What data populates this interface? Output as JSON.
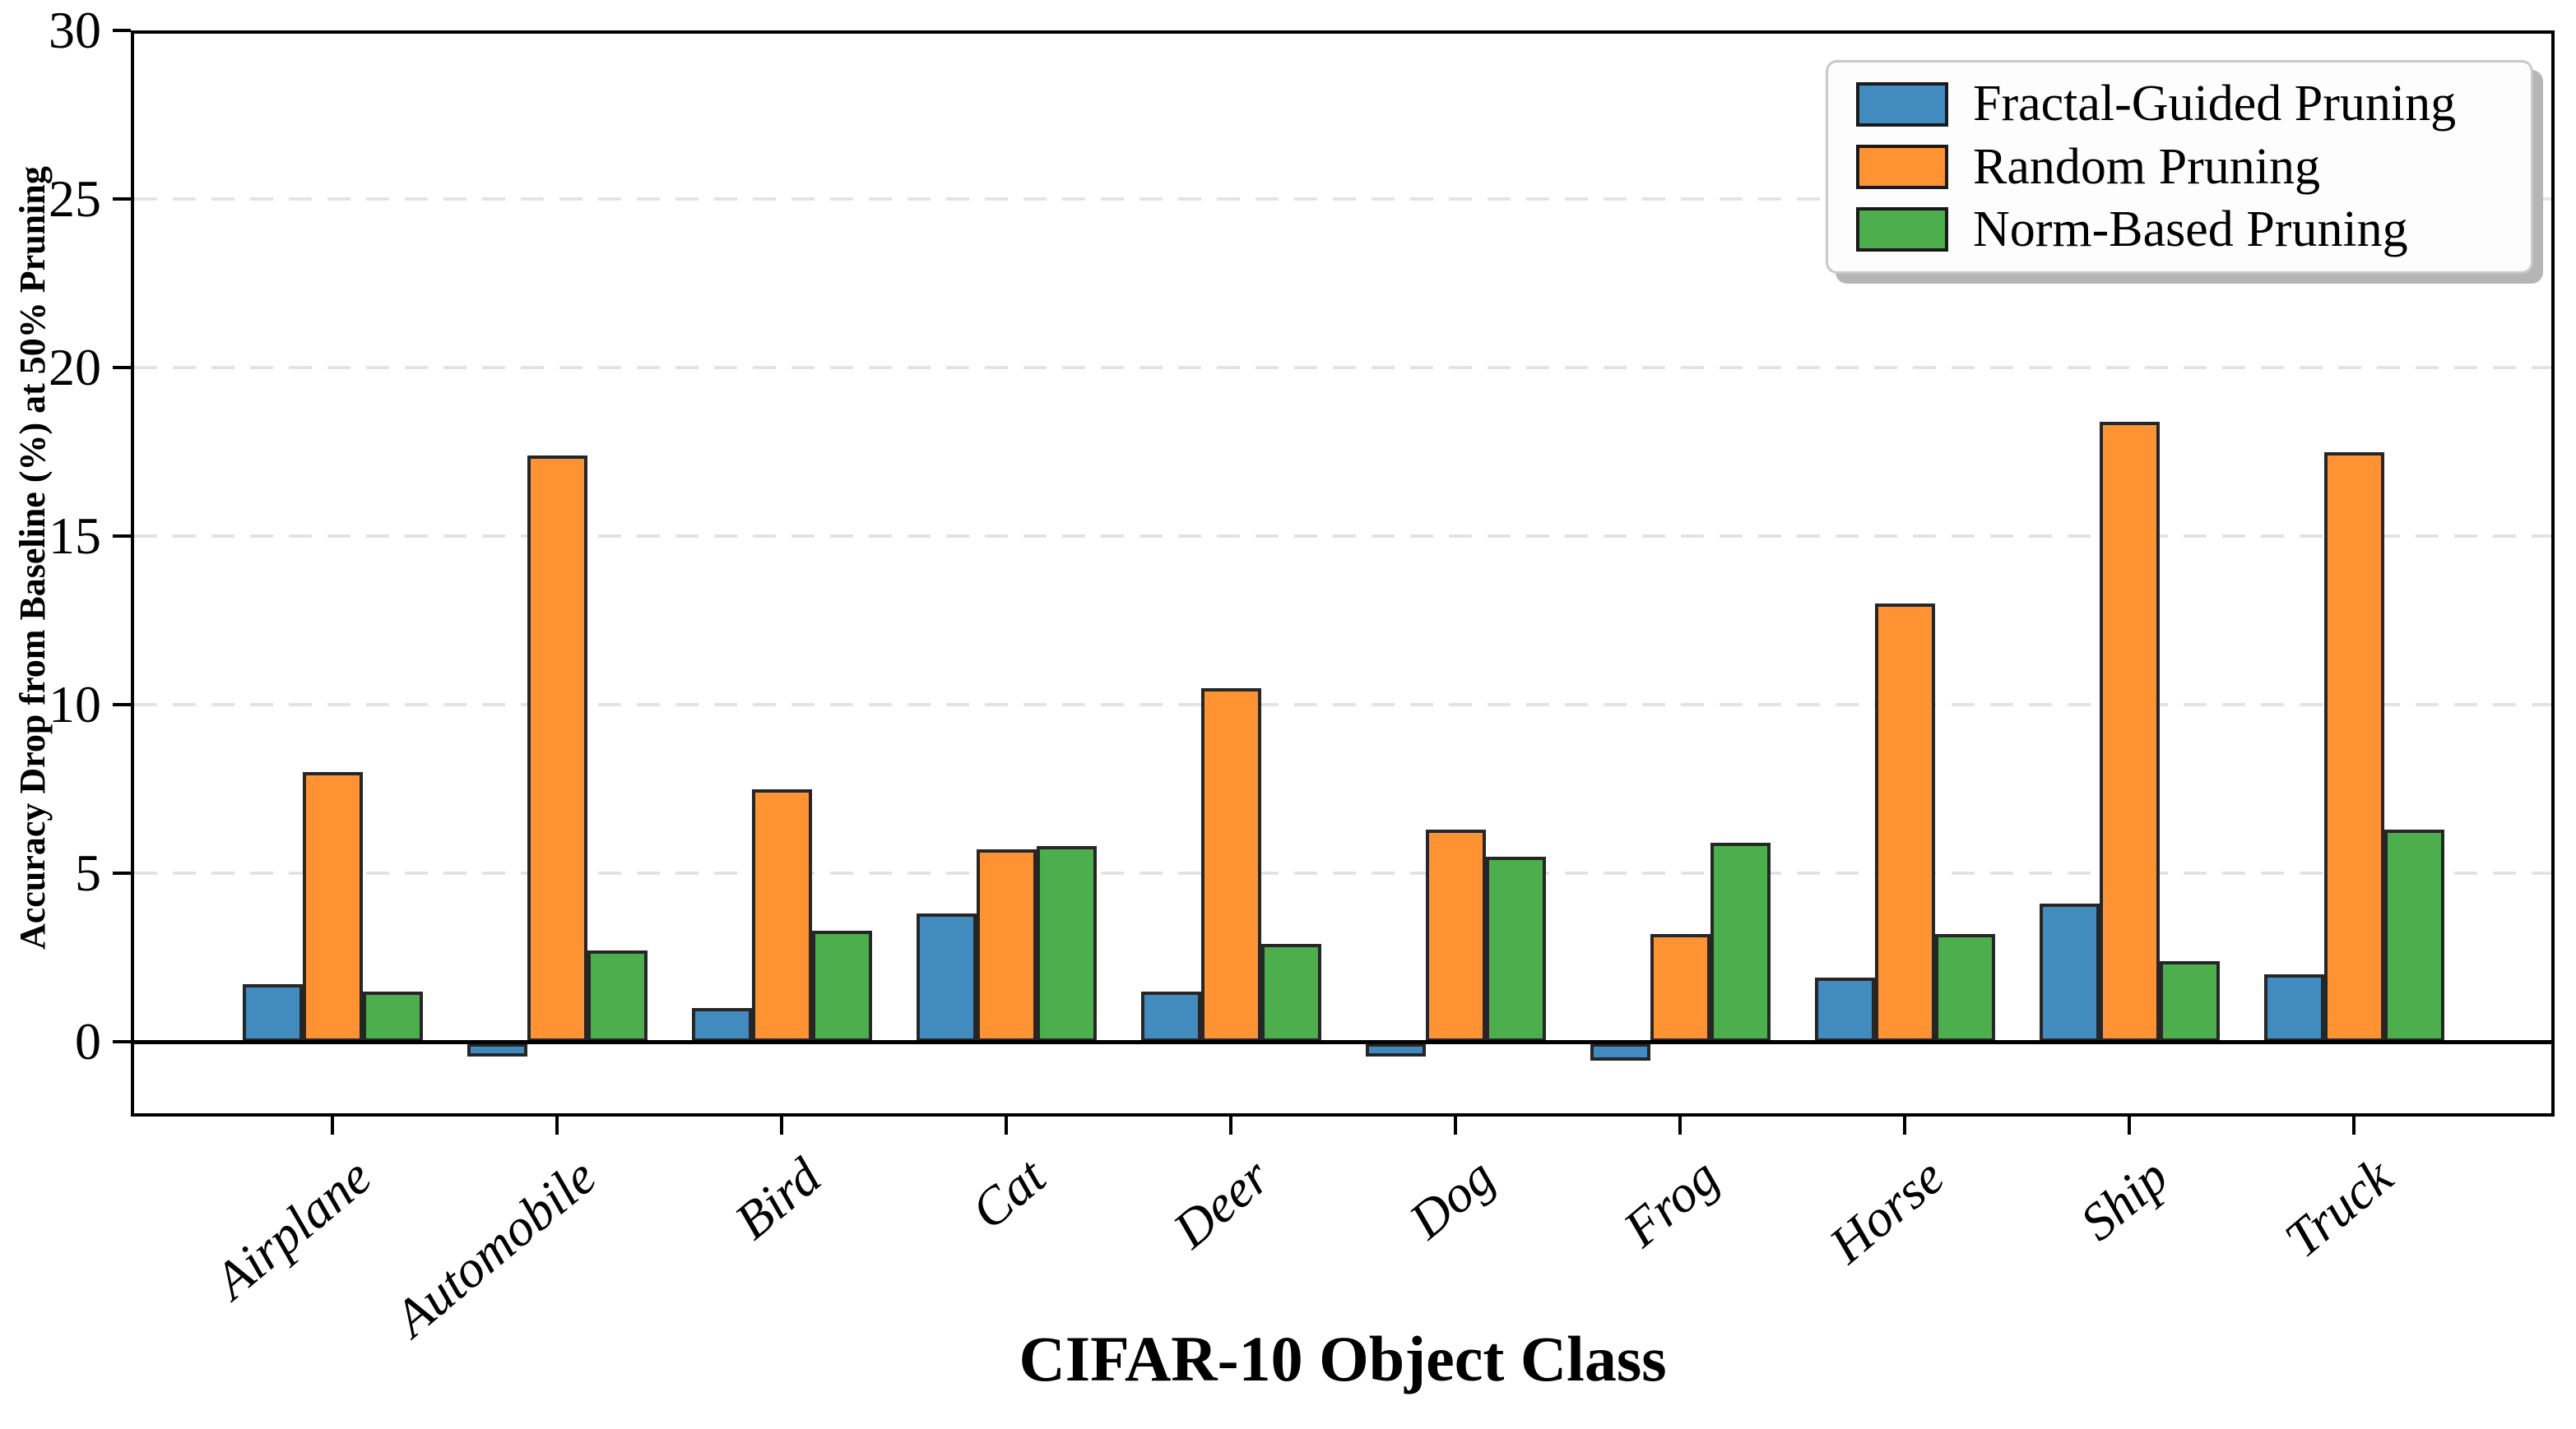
{
  "chart_data": {
    "type": "bar",
    "xlabel": "CIFAR-10 Object Class",
    "ylabel": "Accuracy Drop from Baseline (%) at 50% Pruning",
    "categories": [
      "Airplane",
      "Automobile",
      "Bird",
      "Cat",
      "Deer",
      "Dog",
      "Frog",
      "Horse",
      "Ship",
      "Truck"
    ],
    "series": [
      {
        "name": "Fractal-Guided Pruning",
        "color": "#418BBF",
        "values": [
          1.7,
          -0.4,
          1.0,
          3.8,
          1.5,
          -0.4,
          -0.5,
          1.9,
          4.1,
          2.0
        ]
      },
      {
        "name": "Random Pruning",
        "color": "#FF9232",
        "values": [
          8.0,
          17.4,
          7.5,
          5.7,
          10.5,
          6.3,
          3.2,
          13.0,
          18.4,
          17.5
        ]
      },
      {
        "name": "Norm-Based Pruning",
        "color": "#4CAE4C",
        "values": [
          1.5,
          2.7,
          3.3,
          5.8,
          2.9,
          5.5,
          5.9,
          3.2,
          2.4,
          6.3
        ]
      }
    ],
    "ylim": [
      -2.2,
      30
    ],
    "yticks": [
      0,
      5,
      10,
      15,
      20,
      25,
      30
    ],
    "gridlines_at": [
      5,
      10,
      15,
      20,
      25
    ],
    "grid": true,
    "legend_position": "upper right",
    "bar_edge_color": "#262626",
    "grid_color": "#e3e3e3",
    "axis_color": "#000000"
  }
}
